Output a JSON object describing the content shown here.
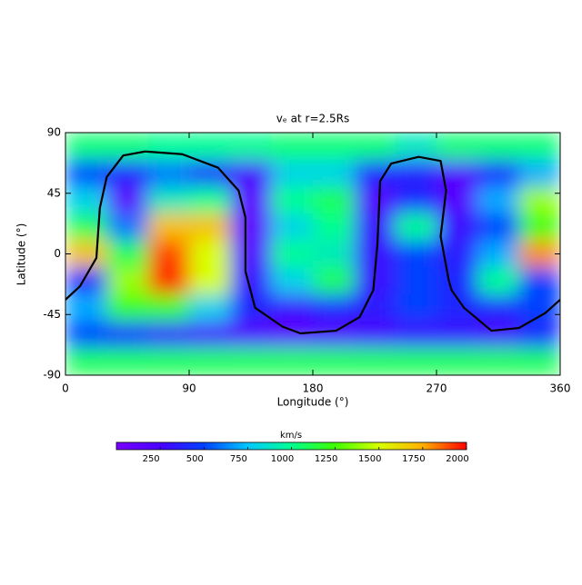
{
  "chart_data": {
    "type": "heatmap",
    "title": "vₑ at r=2.5Rs",
    "x_label": "Longitude (°)",
    "y_label": "Latitude (°)",
    "x": [
      15,
      45,
      75,
      105,
      135,
      165,
      195,
      225,
      255,
      285,
      315,
      345
    ],
    "y": [
      80,
      60,
      40,
      20,
      0,
      -20,
      -40,
      -60,
      -80
    ],
    "z": [
      [
        1050,
        1050,
        1000,
        1000,
        1000,
        1050,
        1050,
        1050,
        900,
        1050,
        1050,
        1050
      ],
      [
        500,
        400,
        600,
        400,
        250,
        800,
        800,
        400,
        350,
        200,
        400,
        700
      ],
      [
        800,
        150,
        900,
        1000,
        150,
        1000,
        1100,
        200,
        400,
        200,
        700,
        1400
      ],
      [
        1100,
        600,
        1700,
        1700,
        150,
        800,
        1000,
        300,
        1000,
        300,
        500,
        1200
      ],
      [
        1700,
        1100,
        1900,
        1500,
        200,
        1000,
        900,
        300,
        500,
        350,
        700,
        1800
      ],
      [
        400,
        1400,
        1950,
        1500,
        300,
        800,
        1100,
        300,
        500,
        400,
        1000,
        500
      ],
      [
        700,
        1200,
        1200,
        800,
        400,
        300,
        400,
        350,
        500,
        400,
        400,
        500
      ],
      [
        500,
        400,
        300,
        250,
        200,
        150,
        200,
        250,
        300,
        300,
        250,
        400
      ],
      [
        1100,
        1100,
        1100,
        1100,
        1100,
        1100,
        1100,
        1100,
        1100,
        1100,
        1100,
        1100
      ]
    ],
    "contour_lon": [
      0,
      10.6,
      22.5,
      25,
      30,
      42,
      58,
      85,
      111,
      126,
      131,
      131,
      138,
      158,
      171,
      197,
      214,
      224,
      227,
      229,
      237,
      257,
      273,
      277,
      273,
      279,
      281,
      290,
      310,
      330,
      349,
      360
    ],
    "contour_lat": [
      -34,
      -24,
      -3,
      34,
      57,
      73,
      76,
      74,
      64,
      47,
      27,
      -13,
      -40,
      -54,
      -59,
      -57,
      -47,
      -27,
      7,
      54,
      67,
      72,
      69,
      47,
      13,
      -20,
      -27,
      -40,
      -57,
      -55,
      -44,
      -34
    ],
    "contour_color": "#000000",
    "xlim": [
      0,
      360
    ],
    "ylim": [
      -90,
      90
    ],
    "xticks": [
      0,
      90,
      180,
      270,
      360
    ],
    "yticks": [
      90,
      45,
      0,
      -45,
      -90
    ],
    "colorbar_label": "km/s",
    "clim": [
      0,
      2000
    ],
    "cticks": [
      250,
      500,
      750,
      1000,
      1250,
      1500,
      1750,
      2000
    ],
    "colormap": [
      "#7a00ff",
      "#4a00ff",
      "#0040ff",
      "#00c8ff",
      "#00ff90",
      "#40ff00",
      "#d8ff00",
      "#ffb000",
      "#ff0000"
    ]
  }
}
